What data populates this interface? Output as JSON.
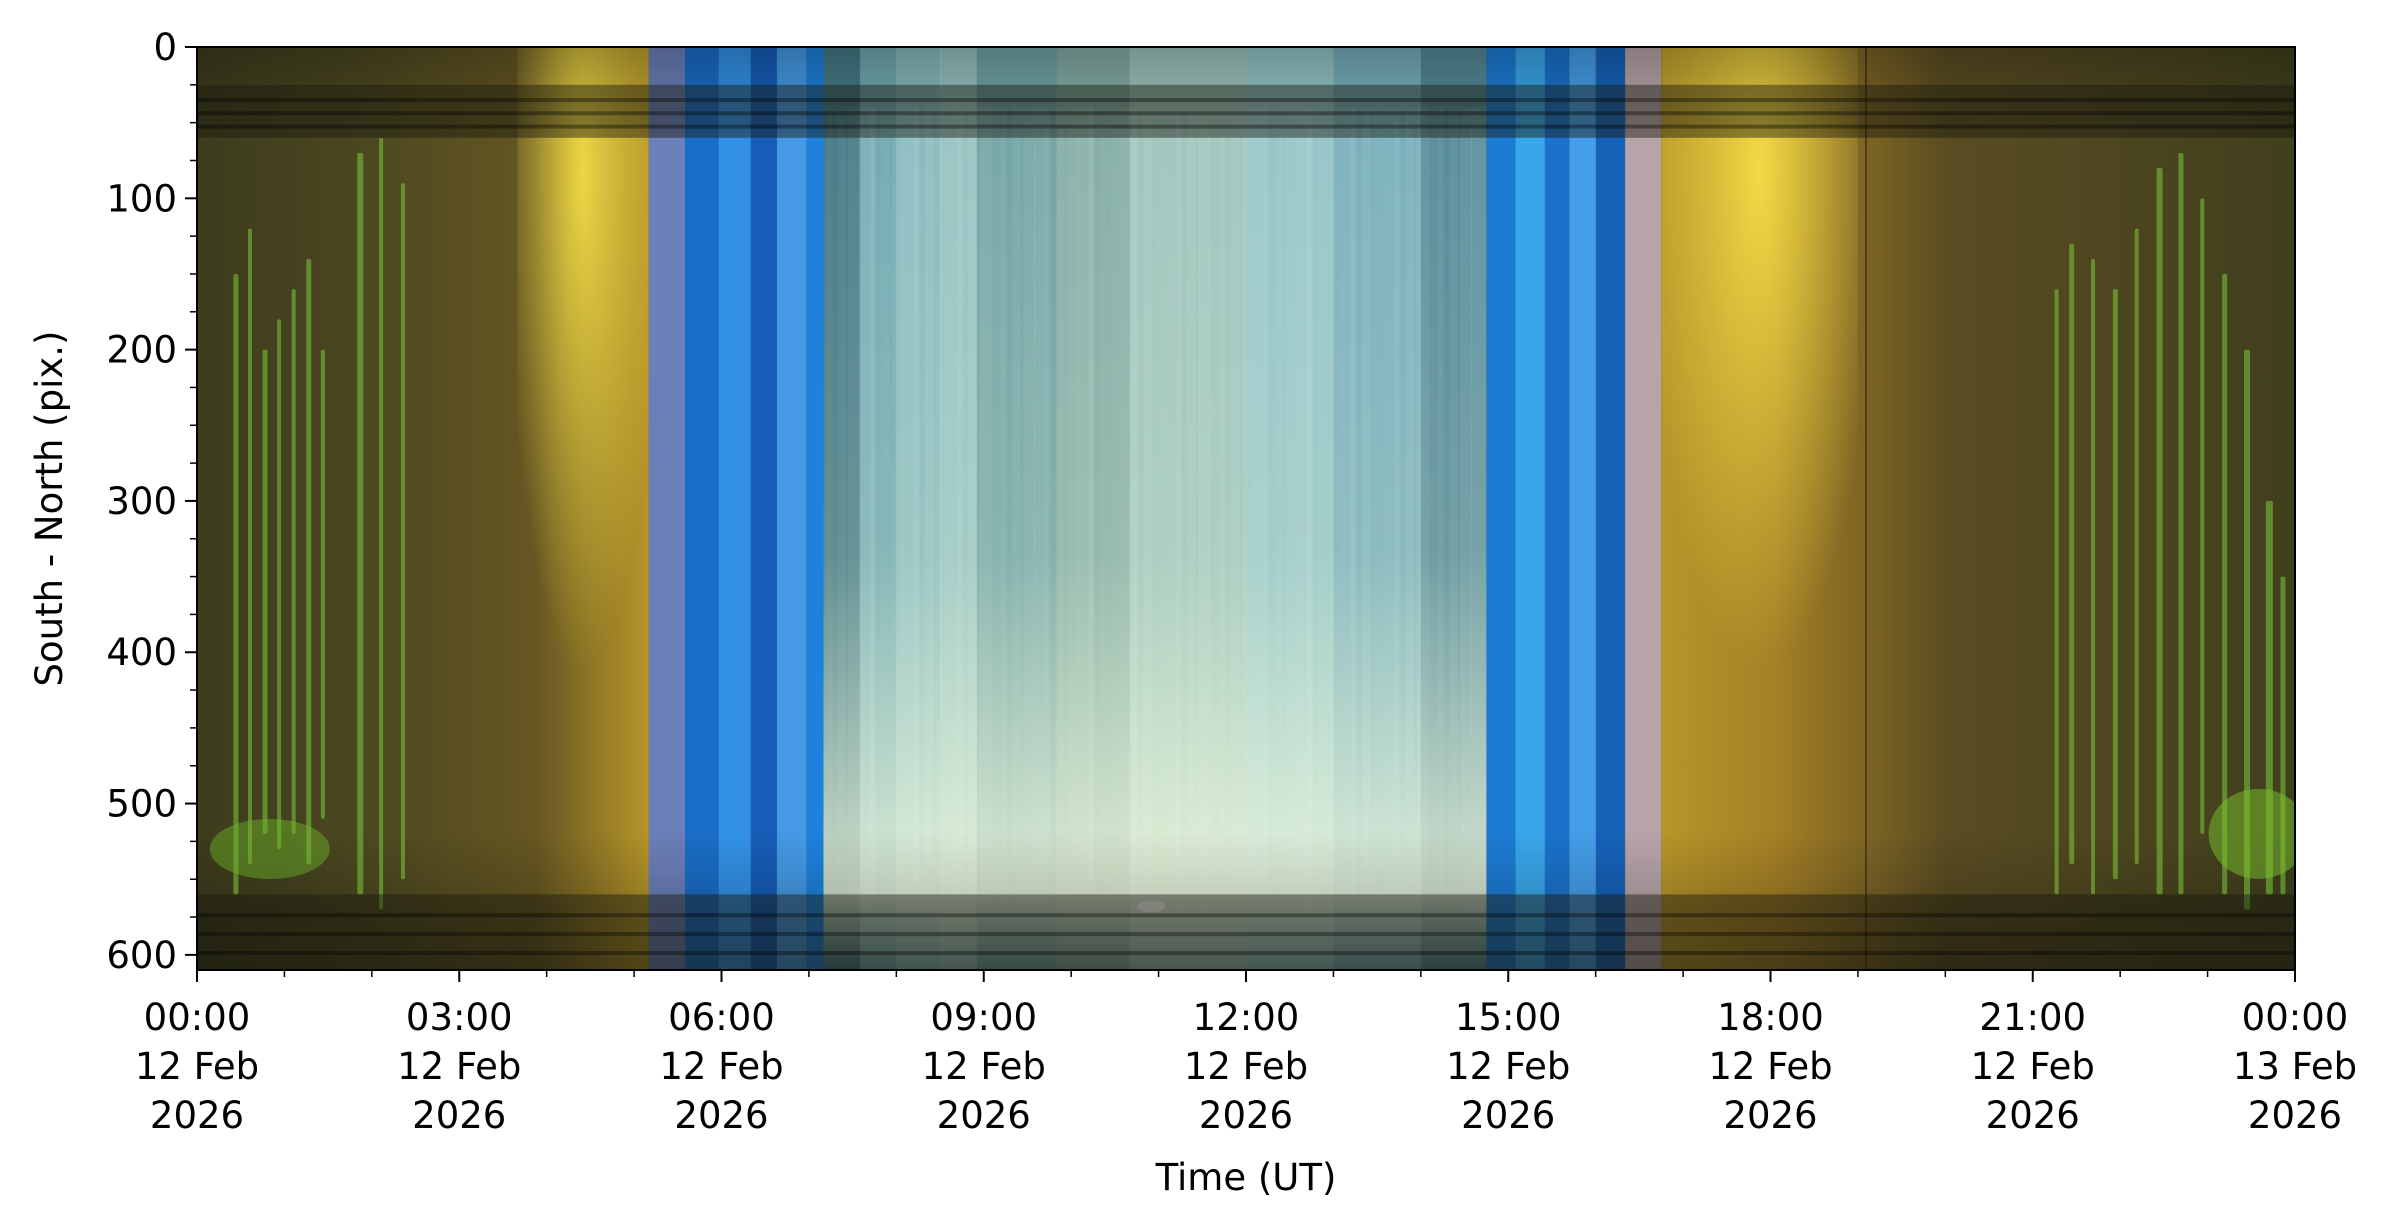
{
  "chart_data": {
    "type": "heatmap",
    "title": "",
    "xlabel": "Time (UT)",
    "ylabel": "South - North (pix.)",
    "xlim": [
      "2026-02-12T00:00",
      "2026-02-13T00:00"
    ],
    "ylim": [
      610,
      0
    ],
    "y_ticks": [
      "0",
      "100",
      "200",
      "300",
      "400",
      "500",
      "600"
    ],
    "y_tick_values": [
      0,
      100,
      200,
      300,
      400,
      500,
      600
    ],
    "x_tick_values": [
      "2026-02-12T00:00",
      "2026-02-12T03:00",
      "2026-02-12T06:00",
      "2026-02-12T09:00",
      "2026-02-12T12:00",
      "2026-02-12T15:00",
      "2026-02-12T18:00",
      "2026-02-12T21:00",
      "2026-02-13T00:00"
    ],
    "x_ticks": [
      [
        "00:00",
        "12 Feb",
        "2026"
      ],
      [
        "03:00",
        "12 Feb",
        "2026"
      ],
      [
        "06:00",
        "12 Feb",
        "2026"
      ],
      [
        "09:00",
        "12 Feb",
        "2026"
      ],
      [
        "12:00",
        "12 Feb",
        "2026"
      ],
      [
        "15:00",
        "12 Feb",
        "2026"
      ],
      [
        "18:00",
        "12 Feb",
        "2026"
      ],
      [
        "21:00",
        "12 Feb",
        "2026"
      ],
      [
        "00:00",
        "13 Feb",
        "2026"
      ]
    ],
    "grid": false,
    "legend": "none",
    "phase_bands": [
      {
        "start": "00:00",
        "end": "05:10",
        "color": "#4a4320",
        "phase": "night-aurora"
      },
      {
        "start": "05:10",
        "end": "05:35",
        "color": "#6b7fb8"
      },
      {
        "start": "05:35",
        "end": "07:10",
        "color": "#1f78d0",
        "phase": "twilight-blue"
      },
      {
        "start": "07:10",
        "end": "09:50",
        "color": "#5e9aa0",
        "phase": "day"
      },
      {
        "start": "09:50",
        "end": "12:00",
        "color": "#9cc2b8",
        "phase": "day-bright"
      },
      {
        "start": "12:00",
        "end": "14:45",
        "color": "#6aa8b4",
        "phase": "day"
      },
      {
        "start": "14:45",
        "end": "16:20",
        "color": "#1f84d8",
        "phase": "twilight-blue"
      },
      {
        "start": "16:20",
        "end": "16:45",
        "color": "#b7a4a8"
      },
      {
        "start": "16:45",
        "end": "24:00",
        "color": "#4d4522",
        "phase": "night-aurora"
      }
    ],
    "horizon_bands_y": [
      [
        25,
        60
      ],
      [
        560,
        610
      ]
    ]
  }
}
